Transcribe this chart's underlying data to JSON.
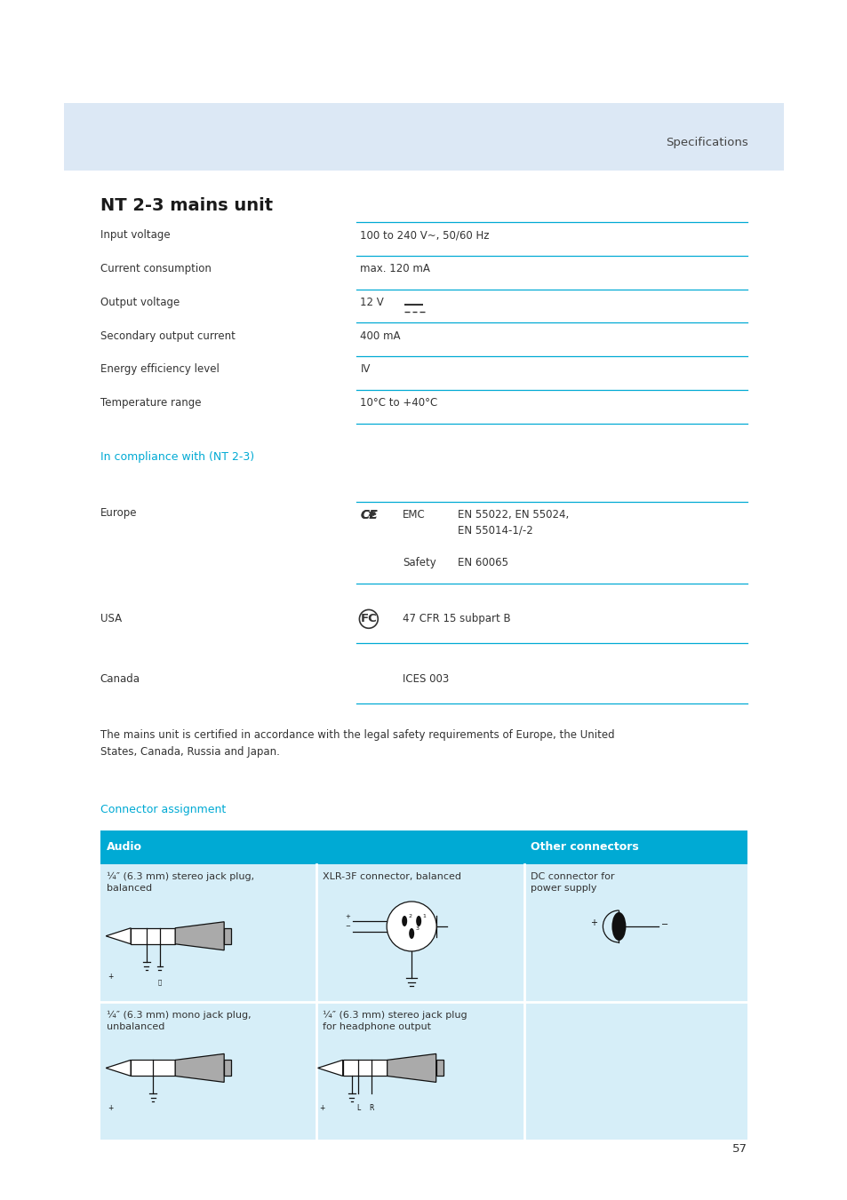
{
  "page_bg": "#ffffff",
  "header_bg": "#dce8f5",
  "header_text": "Specifications",
  "header_text_color": "#444444",
  "title": "NT 2-3 mains unit",
  "title_color": "#1a1a1a",
  "cyan_color": "#00aad4",
  "text_color": "#333333",
  "specs": [
    [
      "Input voltage",
      "100 to 240 V~, 50/60 Hz"
    ],
    [
      "Current consumption",
      "max. 120 mA"
    ],
    [
      "Output voltage",
      "12 V"
    ],
    [
      "Secondary output current",
      "400 mA"
    ],
    [
      "Energy efficiency level",
      "IV"
    ],
    [
      "Temperature range",
      "10°C to +40°C"
    ]
  ],
  "compliance_heading": "In compliance with (NT 2-3)",
  "europe_label": "Europe",
  "emc_label": "EMC",
  "emc_standards": "EN 55022, EN 55024,\nEN 55014-1/-2",
  "safety_label": "Safety",
  "safety_standards": "EN 60065",
  "usa_label": "USA",
  "usa_standards": "47 CFR 15 subpart B",
  "canada_label": "Canada",
  "canada_standards": "ICES 003",
  "cert_text": "The mains unit is certified in accordance with the legal safety requirements of Europe, the United\nStates, Canada, Russia and Japan.",
  "connector_heading": "Connector assignment",
  "table_header_bg": "#00aad4",
  "table_header_text": "#ffffff",
  "table_cell_bg": "#d6eef8",
  "col1_header": "Audio",
  "col2_header": "Other connectors",
  "cell_labels": [
    [
      "¼″ (6.3 mm) stereo jack plug,\nbalanced",
      "XLR-3F connector, balanced",
      "DC connector for\npower supply"
    ],
    [
      "¼″ (6.3 mm) mono jack plug,\nunbalanced",
      "¼″ (6.3 mm) stereo jack plug\nfor headphone output",
      ""
    ]
  ],
  "page_number": "57",
  "ml": 0.118,
  "cr": 0.882,
  "vl": 0.42
}
